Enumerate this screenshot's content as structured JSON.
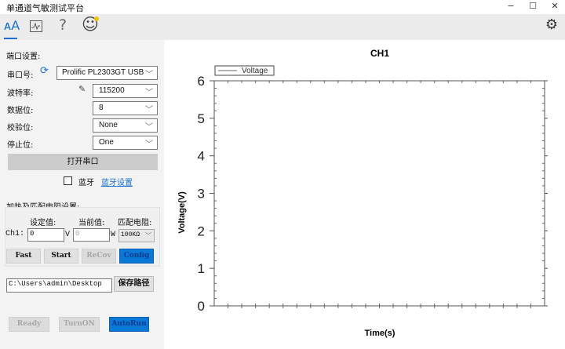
{
  "window": {
    "title": "单通道气敏测试平台",
    "minimize": "−",
    "maximize": "☐",
    "close": "✕"
  },
  "toolbar": {
    "items": [
      {
        "name": "font-settings-icon",
        "glyph": "ᴀA"
      },
      {
        "name": "chart-icon",
        "glyph": "📈"
      },
      {
        "name": "help-icon",
        "glyph": "?"
      },
      {
        "name": "smiley-icon",
        "glyph": "☺"
      }
    ],
    "settings_glyph": "⚙"
  },
  "serial": {
    "heading": "端口设置:",
    "port_label": "串口号:",
    "port_value": "Prolific PL2303GT USB Se",
    "baud_label": "波特率:",
    "baud_value": "115200",
    "data_label": "数据位:",
    "data_value": "8",
    "parity_label": "校验位:",
    "parity_value": "None",
    "stop_label": "停止位:",
    "stop_value": "One",
    "open_button": "打开串口",
    "bluetooth_label": "蓝牙",
    "bluetooth_checked": false,
    "bluetooth_settings": "蓝牙设置"
  },
  "heating": {
    "heading": "加热及匹配电阻设置:",
    "set_label": "设定值:",
    "current_label": "当前值:",
    "match_label": "匹配电阻:",
    "ch_label": "Ch1:",
    "set_value": "0",
    "set_unit": "V",
    "current_value": "0",
    "current_unit": "W",
    "match_value": "100KΩ",
    "buttons": [
      "Fast",
      "Start",
      "ReCov",
      "Config"
    ]
  },
  "save": {
    "path": "C:\\Users\\admin\\Desktop",
    "button": "保存路径"
  },
  "bottom_buttons": [
    "Ready",
    "TurnON",
    "AutoRun"
  ],
  "colors": {
    "accent": "#0a78d7",
    "link": "#1a6fd0"
  },
  "chart_data": {
    "type": "line",
    "title": "CH1",
    "xlabel": "Time(s)",
    "ylabel": "Voltage(V)",
    "ylim": [
      0,
      6
    ],
    "yticks": [
      "0",
      "1",
      "2",
      "3",
      "4",
      "5",
      "6"
    ],
    "legend": "top-left",
    "series": [
      {
        "name": "Voltage",
        "values": []
      }
    ]
  }
}
